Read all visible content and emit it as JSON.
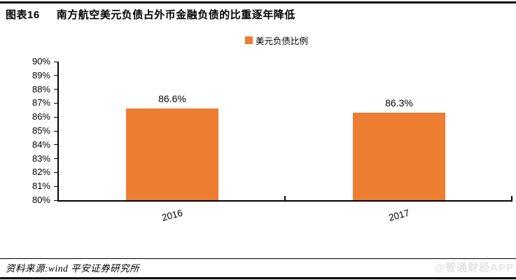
{
  "header": {
    "figure_label": "图表16",
    "title": "南方航空美元负债占外币金融负债的比重逐年降低"
  },
  "legend": {
    "items": [
      {
        "label": "美元负债比例",
        "color": "#ED7D31"
      }
    ]
  },
  "chart_data": {
    "type": "bar",
    "title": "",
    "categories": [
      "2016",
      "2017"
    ],
    "series": [
      {
        "name": "美元负债比例",
        "color": "#ED7D31",
        "values": [
          86.6,
          86.3
        ]
      }
    ],
    "data_labels": [
      "86.6%",
      "86.3%"
    ],
    "xlabel": "",
    "ylabel": "",
    "ylim": [
      80,
      90
    ],
    "ytick_step": 1,
    "ytick_labels": [
      "90%",
      "89%",
      "88%",
      "87%",
      "86%",
      "85%",
      "84%",
      "83%",
      "82%",
      "81%",
      "80%"
    ],
    "grid": false,
    "legend_position": "top-center",
    "bar_width_fraction": 0.41,
    "xtick_label_rotation_deg": -15
  },
  "footer": {
    "source": "资料来源:wind 平安证券研究所",
    "watermark": "@智通财经APP"
  }
}
